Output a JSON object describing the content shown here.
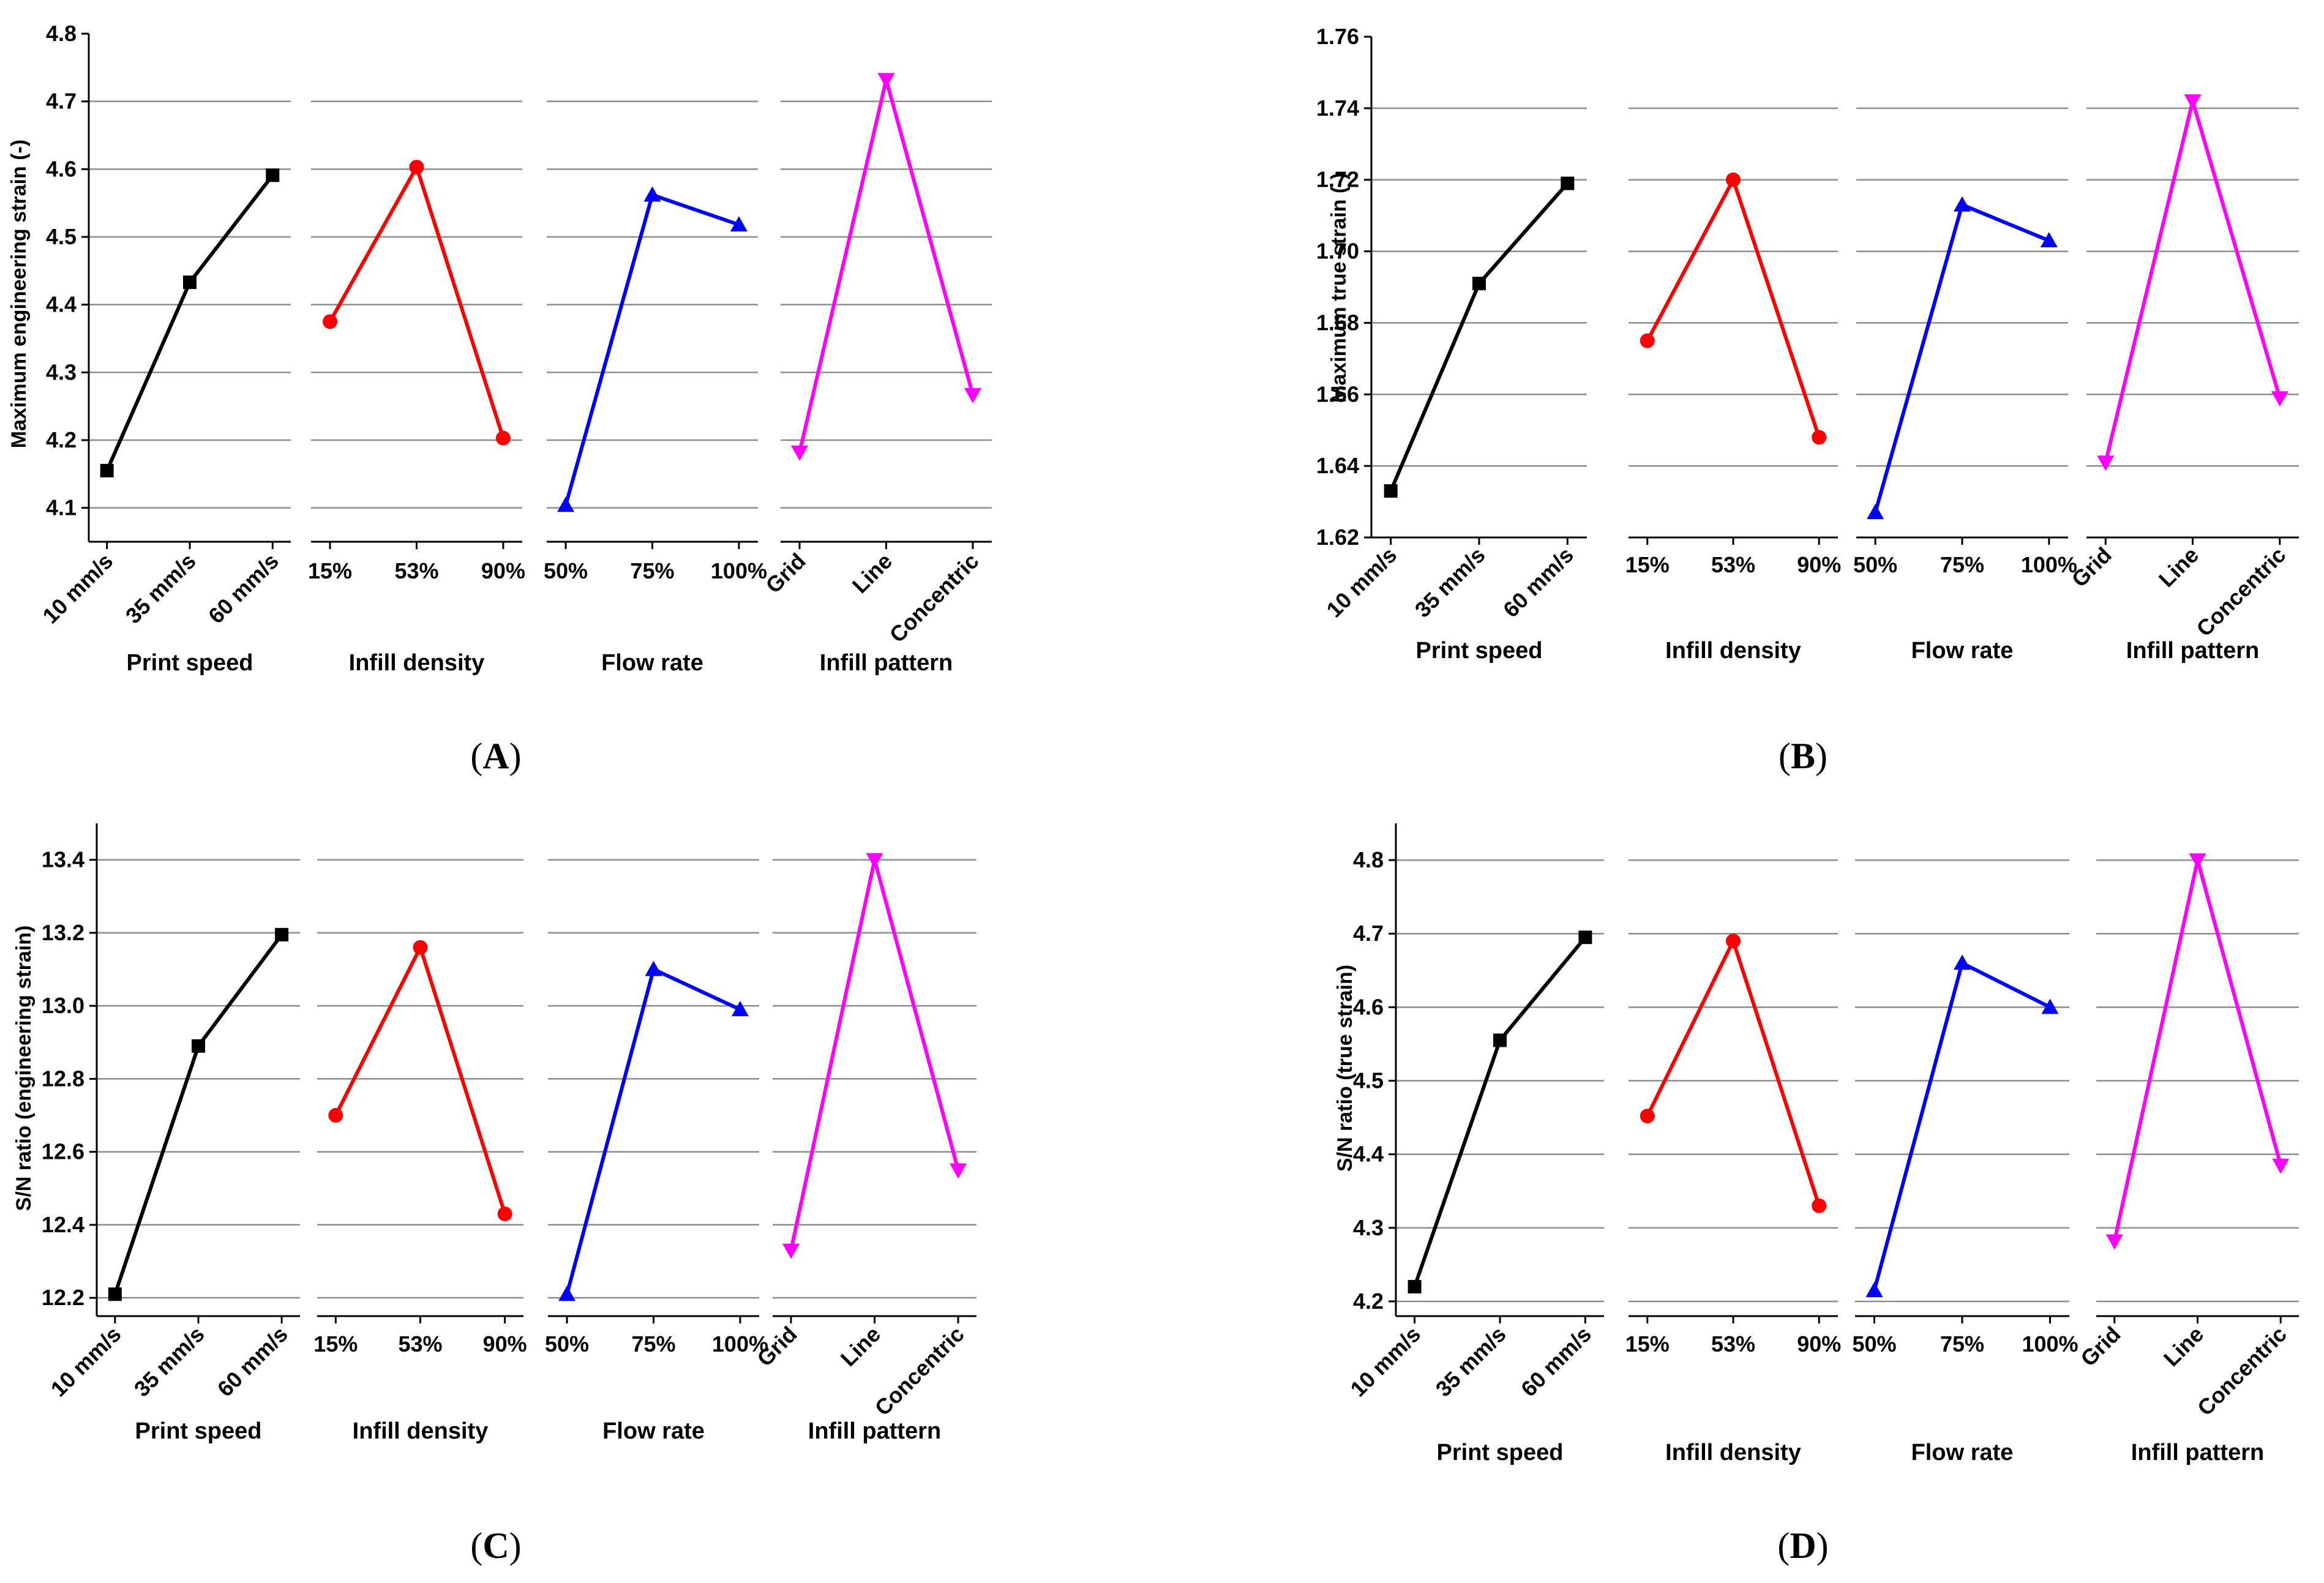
{
  "figure": {
    "series_colors": [
      "#000000",
      "#ff0000",
      "#0000ff",
      "#ff00ff"
    ],
    "marker_shapes": [
      "square",
      "circle",
      "triangle-up",
      "triangle-down"
    ]
  },
  "chart_data": [
    {
      "type": "line",
      "panel": "A",
      "panel_label": "(A)",
      "ylabel": "Maximum engineering strain (-)",
      "ylim": [
        4.05,
        4.8
      ],
      "yticks": [
        4.1,
        4.2,
        4.3,
        4.4,
        4.5,
        4.6,
        4.7,
        4.8
      ],
      "ytick_labels": [
        "4.1",
        "4.2",
        "4.3",
        "4.4",
        "4.5",
        "4.6",
        "4.7",
        "4.8"
      ],
      "gridlines": [
        4.1,
        4.2,
        4.3,
        4.4,
        4.5,
        4.6,
        4.7
      ],
      "series": [
        {
          "name": "Print speed",
          "categories": [
            "10 mm/s",
            "35 mm/s",
            "60 mm/s"
          ],
          "values": [
            4.155,
            4.433,
            4.591
          ],
          "color": "#000000",
          "marker": "square"
        },
        {
          "name": "Infill density",
          "categories": [
            "15%",
            "53%",
            "90%"
          ],
          "values": [
            4.375,
            4.603,
            4.203
          ],
          "color": "#ff0000",
          "marker": "circle"
        },
        {
          "name": "Flow rate",
          "categories": [
            "50%",
            "75%",
            "100%"
          ],
          "values": [
            4.104,
            4.562,
            4.518
          ],
          "color": "#0000ff",
          "marker": "triangle-up"
        },
        {
          "name": "Infill pattern",
          "categories": [
            "Grid",
            "Line",
            "Concentric"
          ],
          "values": [
            4.182,
            4.732,
            4.267
          ],
          "color": "#ff00ff",
          "marker": "triangle-down"
        }
      ]
    },
    {
      "type": "line",
      "panel": "B",
      "panel_label": "(B)",
      "ylabel": "Maximum true strain (-)",
      "ylim": [
        1.62,
        1.76
      ],
      "yticks": [
        1.62,
        1.64,
        1.66,
        1.68,
        1.7,
        1.72,
        1.74,
        1.76
      ],
      "ytick_labels": [
        "1.62",
        "1.64",
        "1.66",
        "1.68",
        "1.70",
        "1.72",
        "1.74",
        "1.76"
      ],
      "gridlines": [
        1.64,
        1.66,
        1.68,
        1.7,
        1.72,
        1.74
      ],
      "series": [
        {
          "name": "Print speed",
          "categories": [
            "10 mm/s",
            "35 mm/s",
            "60 mm/s"
          ],
          "values": [
            1.633,
            1.691,
            1.719
          ],
          "color": "#000000",
          "marker": "square"
        },
        {
          "name": "Infill density",
          "categories": [
            "15%",
            "53%",
            "90%"
          ],
          "values": [
            1.675,
            1.72,
            1.648
          ],
          "color": "#ff0000",
          "marker": "circle"
        },
        {
          "name": "Flow rate",
          "categories": [
            "50%",
            "75%",
            "100%"
          ],
          "values": [
            1.627,
            1.713,
            1.703
          ],
          "color": "#0000ff",
          "marker": "triangle-up"
        },
        {
          "name": "Infill pattern",
          "categories": [
            "Grid",
            "Line",
            "Concentric"
          ],
          "values": [
            1.641,
            1.742,
            1.659
          ],
          "color": "#ff00ff",
          "marker": "triangle-down"
        }
      ]
    },
    {
      "type": "line",
      "panel": "C",
      "panel_label": "(C)",
      "ylabel": "S/N ratio (engineering strain)",
      "ylim": [
        12.15,
        13.5
      ],
      "yticks": [
        12.2,
        12.4,
        12.6,
        12.8,
        13.0,
        13.2,
        13.4
      ],
      "ytick_labels": [
        "12.2",
        "12.4",
        "12.6",
        "12.8",
        "13.0",
        "13.2",
        "13.4"
      ],
      "gridlines": [
        12.2,
        12.4,
        12.6,
        12.8,
        13.0,
        13.2,
        13.4
      ],
      "series": [
        {
          "name": "Print speed",
          "categories": [
            "10 mm/s",
            "35 mm/s",
            "60 mm/s"
          ],
          "values": [
            12.21,
            12.89,
            13.195
          ],
          "color": "#000000",
          "marker": "square"
        },
        {
          "name": "Infill density",
          "categories": [
            "15%",
            "53%",
            "90%"
          ],
          "values": [
            12.7,
            13.16,
            12.43
          ],
          "color": "#ff0000",
          "marker": "circle"
        },
        {
          "name": "Flow rate",
          "categories": [
            "50%",
            "75%",
            "100%"
          ],
          "values": [
            12.21,
            13.1,
            12.99
          ],
          "color": "#0000ff",
          "marker": "triangle-up"
        },
        {
          "name": "Infill pattern",
          "categories": [
            "Grid",
            "Line",
            "Concentric"
          ],
          "values": [
            12.33,
            13.4,
            12.55
          ],
          "color": "#ff00ff",
          "marker": "triangle-down"
        }
      ]
    },
    {
      "type": "line",
      "panel": "D",
      "panel_label": "(D)",
      "ylabel": "S/N ratio (true strain)",
      "ylim": [
        4.18,
        4.85
      ],
      "yticks": [
        4.2,
        4.3,
        4.4,
        4.5,
        4.6,
        4.7,
        4.8
      ],
      "ytick_labels": [
        "4.2",
        "4.3",
        "4.4",
        "4.5",
        "4.6",
        "4.7",
        "4.8"
      ],
      "gridlines": [
        4.2,
        4.3,
        4.4,
        4.5,
        4.6,
        4.7,
        4.8
      ],
      "series": [
        {
          "name": "Print speed",
          "categories": [
            "10 mm/s",
            "35 mm/s",
            "60 mm/s"
          ],
          "values": [
            4.22,
            4.555,
            4.695
          ],
          "color": "#000000",
          "marker": "square"
        },
        {
          "name": "Infill density",
          "categories": [
            "15%",
            "53%",
            "90%"
          ],
          "values": [
            4.452,
            4.69,
            4.33
          ],
          "color": "#ff0000",
          "marker": "circle"
        },
        {
          "name": "Flow rate",
          "categories": [
            "50%",
            "75%",
            "100%"
          ],
          "values": [
            4.215,
            4.66,
            4.6
          ],
          "color": "#0000ff",
          "marker": "triangle-up"
        },
        {
          "name": "Infill pattern",
          "categories": [
            "Grid",
            "Line",
            "Concentric"
          ],
          "values": [
            4.282,
            4.8,
            4.385
          ],
          "color": "#ff00ff",
          "marker": "triangle-down"
        }
      ]
    }
  ]
}
